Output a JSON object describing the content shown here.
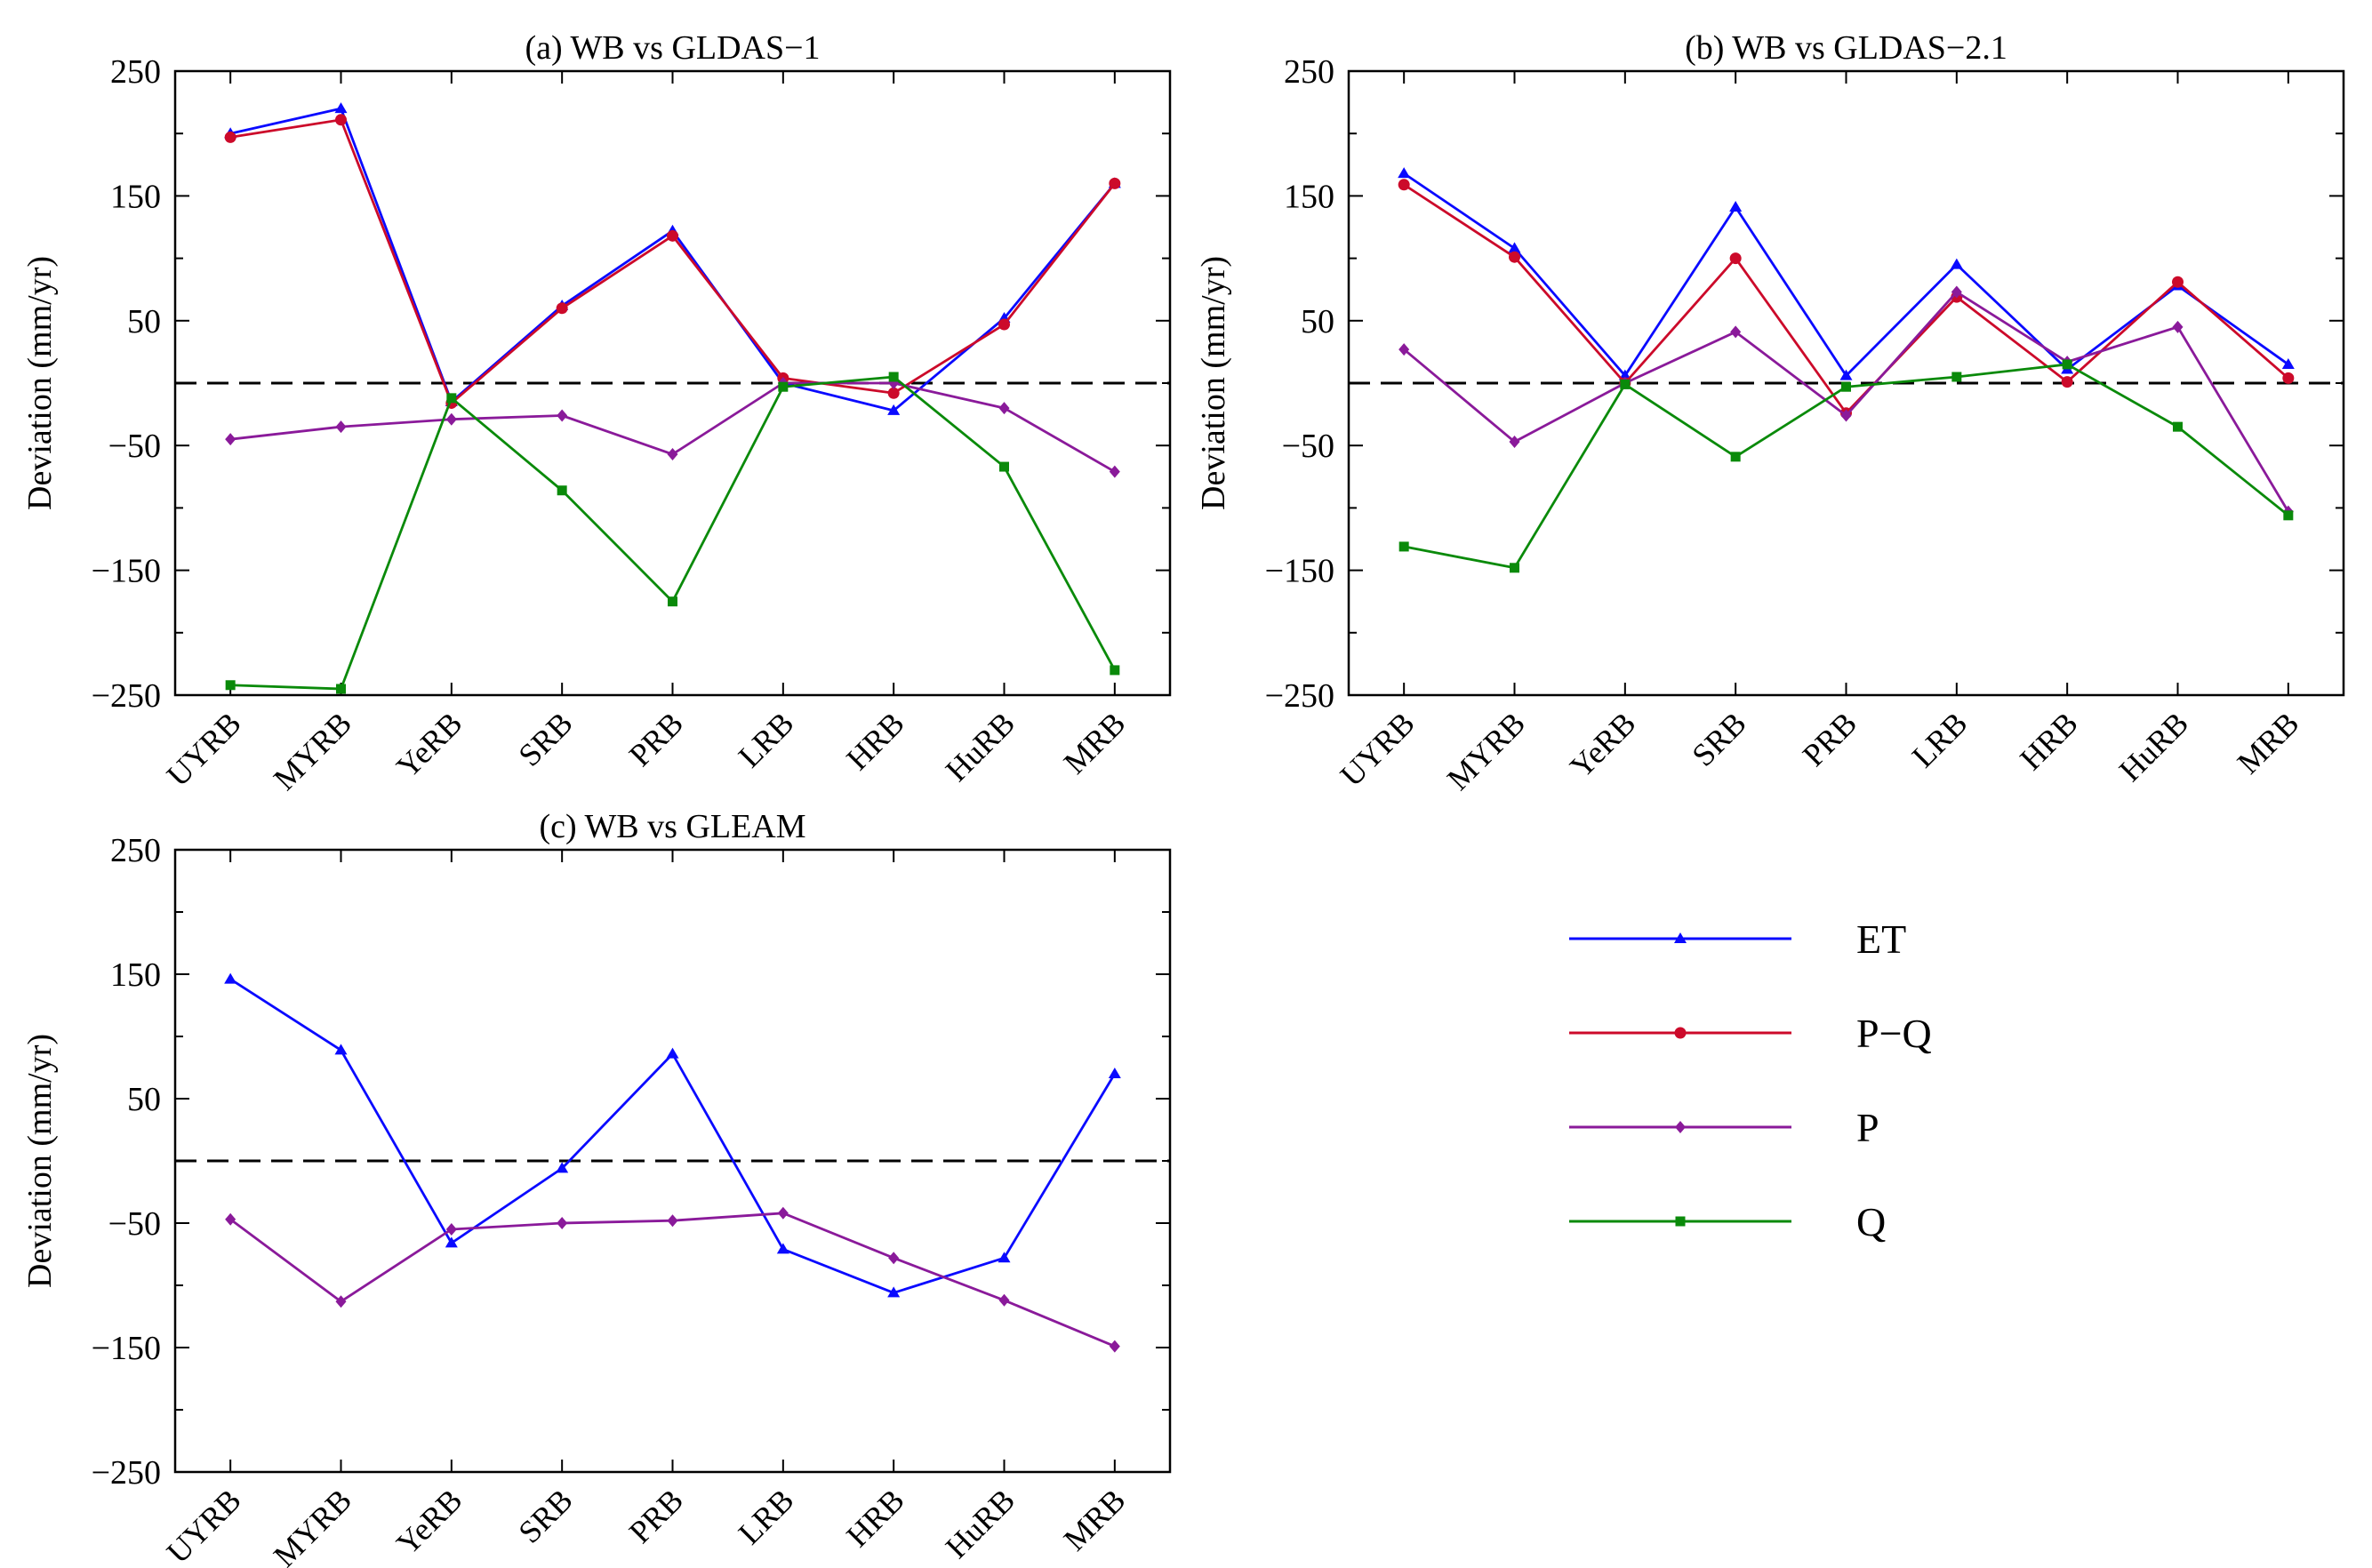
{
  "colors": {
    "ET": "#0a0aff",
    "P-Q": "#cc0a2a",
    "P": "#8a1a9a",
    "Q": "#0a8a0a",
    "zero_line": "#000000"
  },
  "legend": {
    "position": "bottom-right",
    "items": [
      {
        "key": "ET",
        "label": "ET",
        "marker": "triangle"
      },
      {
        "key": "P-Q",
        "label": "P−Q",
        "marker": "circle"
      },
      {
        "key": "P",
        "label": "P",
        "marker": "diamond"
      },
      {
        "key": "Q",
        "label": "Q",
        "marker": "square"
      }
    ]
  },
  "chart_data": [
    {
      "type": "line",
      "title": "(a) WB vs GLDAS−1",
      "ylabel": "Deviation (mm/yr)",
      "xlabel": "",
      "ylim": [
        -250,
        250
      ],
      "yticks": [
        -250,
        -150,
        -50,
        50,
        150,
        250
      ],
      "zero_line": 0,
      "categories": [
        "UYRB",
        "MYRB",
        "YeRB",
        "SRB",
        "PRB",
        "LRB",
        "HRB",
        "HuRB",
        "MRB"
      ],
      "series": [
        {
          "name": "ET",
          "marker": "triangle",
          "values": [
            200,
            220,
            -15,
            62,
            122,
            0,
            -22,
            52,
            160
          ]
        },
        {
          "name": "P−Q",
          "marker": "circle",
          "values": [
            197,
            211,
            -16,
            60,
            118,
            4,
            -8,
            47,
            160
          ]
        },
        {
          "name": "P",
          "marker": "diamond",
          "values": [
            -45,
            -35,
            -29,
            -26,
            -57,
            0,
            0,
            -20,
            -71
          ]
        },
        {
          "name": "Q",
          "marker": "square",
          "values": [
            -242,
            -245,
            -12,
            -86,
            -175,
            -3,
            5,
            -67,
            -230
          ]
        }
      ]
    },
    {
      "type": "line",
      "title": "(b) WB vs GLDAS−2.1",
      "ylabel": "Deviation (mm/yr)",
      "xlabel": "",
      "ylim": [
        -250,
        250
      ],
      "yticks": [
        -250,
        -150,
        -50,
        50,
        150,
        250
      ],
      "zero_line": 0,
      "categories": [
        "UYRB",
        "MYRB",
        "YeRB",
        "SRB",
        "PRB",
        "LRB",
        "HRB",
        "HuRB",
        "MRB"
      ],
      "series": [
        {
          "name": "ET",
          "marker": "triangle",
          "values": [
            168,
            108,
            6,
            141,
            6,
            95,
            11,
            78,
            15
          ]
        },
        {
          "name": "P−Q",
          "marker": "circle",
          "values": [
            159,
            101,
            0,
            100,
            -24,
            69,
            1,
            81,
            4
          ]
        },
        {
          "name": "P",
          "marker": "diamond",
          "values": [
            27,
            -47,
            0,
            41,
            -26,
            73,
            17,
            45,
            -103
          ]
        },
        {
          "name": "Q",
          "marker": "square",
          "values": [
            -131,
            -148,
            -1,
            -59,
            -3,
            5,
            15,
            -35,
            -106
          ]
        }
      ]
    },
    {
      "type": "line",
      "title": "(c) WB vs GLEAM",
      "ylabel": "Deviation (mm/yr)",
      "xlabel": "",
      "ylim": [
        -250,
        250
      ],
      "yticks": [
        -250,
        -150,
        -50,
        50,
        150,
        250
      ],
      "zero_line": 0,
      "categories": [
        "UYRB",
        "MYRB",
        "YeRB",
        "SRB",
        "PRB",
        "LRB",
        "HRB",
        "HuRB",
        "MRB"
      ],
      "series": [
        {
          "name": "ET",
          "marker": "triangle",
          "values": [
            146,
            89,
            -66,
            -6,
            86,
            -71,
            -106,
            -78,
            70
          ]
        },
        {
          "name": "P",
          "marker": "diamond",
          "values": [
            -47,
            -113,
            -55,
            -50,
            -48,
            -42,
            -78,
            -112,
            -149
          ]
        }
      ]
    }
  ]
}
